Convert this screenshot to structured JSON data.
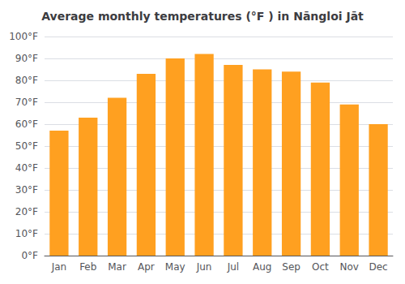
{
  "chart_data": {
    "type": "bar",
    "title": "Average monthly temperatures (°F ) in Nāngloi Jāt",
    "categories": [
      "Jan",
      "Feb",
      "Mar",
      "Apr",
      "May",
      "Jun",
      "Jul",
      "Aug",
      "Sep",
      "Oct",
      "Nov",
      "Dec"
    ],
    "values": [
      57,
      63,
      72,
      83,
      90,
      92,
      87,
      85,
      84,
      79,
      69,
      60
    ],
    "color": "#FFA020",
    "ylim": [
      0,
      100
    ],
    "yticks": [
      {
        "value": 0,
        "label": "0°F"
      },
      {
        "value": 10,
        "label": "10°F"
      },
      {
        "value": 20,
        "label": "20°F"
      },
      {
        "value": 30,
        "label": "30°F"
      },
      {
        "value": 40,
        "label": "40°F"
      },
      {
        "value": 50,
        "label": "50°F"
      },
      {
        "value": 60,
        "label": "60°F"
      },
      {
        "value": 70,
        "label": "70°F"
      },
      {
        "value": 80,
        "label": "80°F"
      },
      {
        "value": 90,
        "label": "90°F"
      },
      {
        "value": 100,
        "label": "100°F"
      }
    ],
    "grid": true
  }
}
